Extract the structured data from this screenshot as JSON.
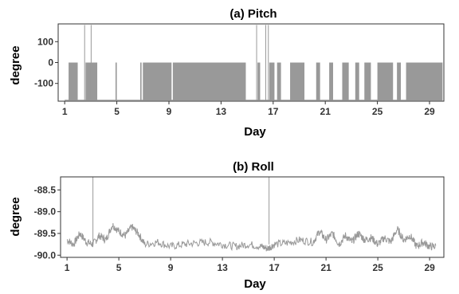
{
  "chart_data": [
    {
      "type": "area",
      "title": "(a) Pitch",
      "xlabel": "Day",
      "ylabel": "degree",
      "xlim": [
        0.5,
        30.1
      ],
      "ylim": [
        -185,
        185
      ],
      "x_ticks": [
        1,
        5,
        9,
        13,
        17,
        21,
        25,
        29
      ],
      "x_tick_labels": [
        "1",
        "5",
        "9",
        "13",
        "17",
        "21",
        "25",
        "29"
      ],
      "y_ticks": [
        100,
        0,
        -100
      ],
      "y_tick_labels": [
        "100",
        "0",
        "-100"
      ],
      "color": "#999999",
      "baseline": -180,
      "segments": [
        [
          1.3,
          2.0,
          0
        ],
        [
          2.5,
          2.55,
          180
        ],
        [
          2.6,
          3.5,
          0
        ],
        [
          3.0,
          3.05,
          180
        ],
        [
          4.9,
          5.0,
          0
        ],
        [
          6.8,
          6.9,
          0
        ],
        [
          7.0,
          9.2,
          0
        ],
        [
          9.3,
          14.9,
          0
        ],
        [
          15.7,
          15.75,
          180
        ],
        [
          15.8,
          16.0,
          0
        ],
        [
          16.4,
          16.45,
          180
        ],
        [
          16.6,
          16.65,
          180
        ],
        [
          16.7,
          17.1,
          0
        ],
        [
          17.3,
          17.6,
          0
        ],
        [
          18.3,
          19.4,
          0
        ],
        [
          20.3,
          20.6,
          0
        ],
        [
          21.3,
          21.6,
          0
        ],
        [
          22.3,
          22.8,
          0
        ],
        [
          23.3,
          23.6,
          0
        ],
        [
          24.0,
          24.5,
          0
        ],
        [
          25.0,
          26.2,
          0
        ],
        [
          26.5,
          26.8,
          0
        ],
        [
          27.2,
          30.0,
          0
        ]
      ]
    },
    {
      "type": "line",
      "title": "(b) Roll",
      "xlabel": "Day",
      "ylabel": "degree",
      "xlim": [
        0.5,
        30.1
      ],
      "ylim": [
        -90.05,
        -88.2
      ],
      "x_ticks": [
        1,
        5,
        9,
        13,
        17,
        21,
        25,
        29
      ],
      "x_tick_labels": [
        "1",
        "5",
        "9",
        "13",
        "17",
        "21",
        "25",
        "29"
      ],
      "y_ticks": [
        -88.5,
        -89.0,
        -89.5,
        -90.0
      ],
      "y_tick_labels": [
        "-88.5",
        "-89.0",
        "-89.5",
        "-90.0"
      ],
      "color": "#999999",
      "x": [
        1.0,
        1.5,
        2.0,
        2.5,
        3.0,
        3.5,
        4.0,
        4.5,
        5.0,
        5.5,
        6.0,
        6.5,
        7.0,
        8.0,
        9.0,
        10.0,
        11.0,
        12.0,
        13.0,
        14.0,
        15.0,
        16.0,
        16.5,
        17.0,
        18.0,
        19.0,
        20.0,
        20.5,
        21.0,
        21.5,
        22.0,
        22.5,
        23.0,
        23.5,
        24.0,
        24.5,
        25.0,
        25.5,
        26.0,
        26.5,
        27.0,
        27.5,
        28.0,
        28.5,
        29.0,
        29.5
      ],
      "y": [
        -89.65,
        -89.75,
        -89.5,
        -89.7,
        -89.75,
        -89.55,
        -89.65,
        -89.3,
        -89.45,
        -89.55,
        -89.35,
        -89.5,
        -89.75,
        -89.7,
        -89.8,
        -89.75,
        -89.72,
        -89.7,
        -89.75,
        -89.8,
        -89.75,
        -89.8,
        -89.85,
        -89.75,
        -89.72,
        -89.65,
        -89.7,
        -89.45,
        -89.65,
        -89.5,
        -89.75,
        -89.55,
        -89.7,
        -89.5,
        -89.65,
        -89.6,
        -89.75,
        -89.6,
        -89.7,
        -89.4,
        -89.65,
        -89.55,
        -89.8,
        -89.7,
        -89.8,
        -89.8
      ],
      "spikes": [
        [
          3.0,
          -88.2
        ],
        [
          16.6,
          -88.2
        ]
      ]
    }
  ]
}
